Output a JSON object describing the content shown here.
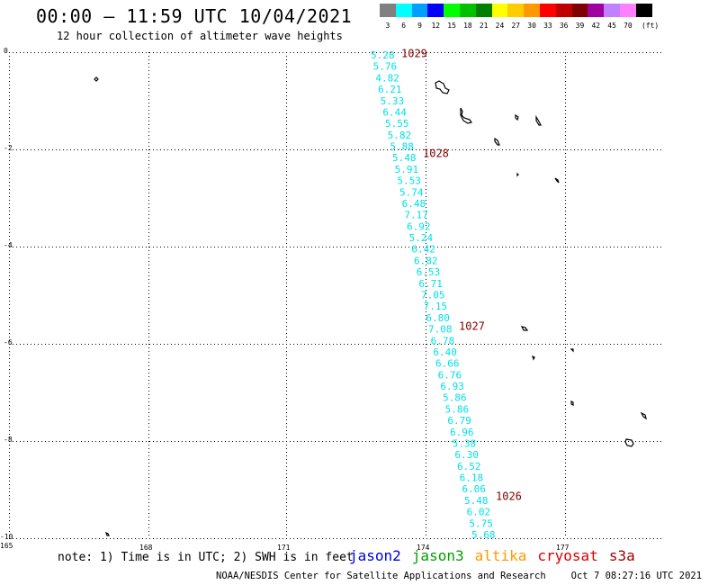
{
  "header": {
    "title": "00:00 — 11:59 UTC 10/04/2021",
    "subtitle": "12 hour collection of altimeter wave heights"
  },
  "color_scale": {
    "unit_label": "(ft)",
    "bins": [
      {
        "label": "3",
        "color": "#808080"
      },
      {
        "label": "6",
        "color": "#00ffff"
      },
      {
        "label": "9",
        "color": "#00a0ff"
      },
      {
        "label": "12",
        "color": "#0000ff"
      },
      {
        "label": "15",
        "color": "#00ff00"
      },
      {
        "label": "18",
        "color": "#00c000"
      },
      {
        "label": "21",
        "color": "#008000"
      },
      {
        "label": "24",
        "color": "#ffff00"
      },
      {
        "label": "27",
        "color": "#ffcc00"
      },
      {
        "label": "30",
        "color": "#ff9900"
      },
      {
        "label": "33",
        "color": "#ff0000"
      },
      {
        "label": "36",
        "color": "#c00000"
      },
      {
        "label": "39",
        "color": "#800000"
      },
      {
        "label": "42",
        "color": "#a000a0"
      },
      {
        "label": "45",
        "color": "#c080ff"
      },
      {
        "label": "70",
        "color": "#ff80ff"
      },
      {
        "label": "",
        "color": "#000000"
      }
    ]
  },
  "map": {
    "lat_labels": [
      "0",
      "-2",
      "-4",
      "-6",
      "-8",
      "-10"
    ],
    "lon_labels": [
      "165",
      "168",
      "171",
      "174",
      "177"
    ],
    "track_color": "#00e0e8",
    "time_color": "#800000",
    "swh_values": [
      "5.28",
      "5.76",
      "4.82",
      "6.21",
      "5.33",
      "6.44",
      "5.55",
      "5.82",
      "5.88",
      "5.48",
      "5.91",
      "5.53",
      "5.74",
      "6.48",
      "7.17",
      "6.92",
      "5.24",
      "6.42",
      "6.82",
      "6.53",
      "6.71",
      "7.05",
      "7.15",
      "6.80",
      "7.08",
      "6.78",
      "6.40",
      "6.66",
      "6.76",
      "6.93",
      "5.86",
      "5.86",
      "6.79",
      "6.96",
      "5.38",
      "6.30",
      "6.52",
      "6.18",
      "6.06",
      "5.48",
      "6.02",
      "5.75",
      "5.68"
    ],
    "time_labels": [
      "1029",
      "1028",
      "1027",
      "1026"
    ]
  },
  "footer": {
    "note": "note: 1) Time is in UTC; 2) SWH is in feet",
    "satellites": [
      {
        "name": "jason2",
        "color": "#0000dd"
      },
      {
        "name": "jason3",
        "color": "#00a000"
      },
      {
        "name": "altika",
        "color": "#ff9900"
      },
      {
        "name": "cryosat",
        "color": "#dd0000"
      },
      {
        "name": "s3a",
        "color": "#a00000"
      }
    ],
    "credit_org": "NOAA/NESDIS Center for Satellite Applications and Research",
    "credit_time": "Oct  7 08:27:16 UTC 2021"
  }
}
